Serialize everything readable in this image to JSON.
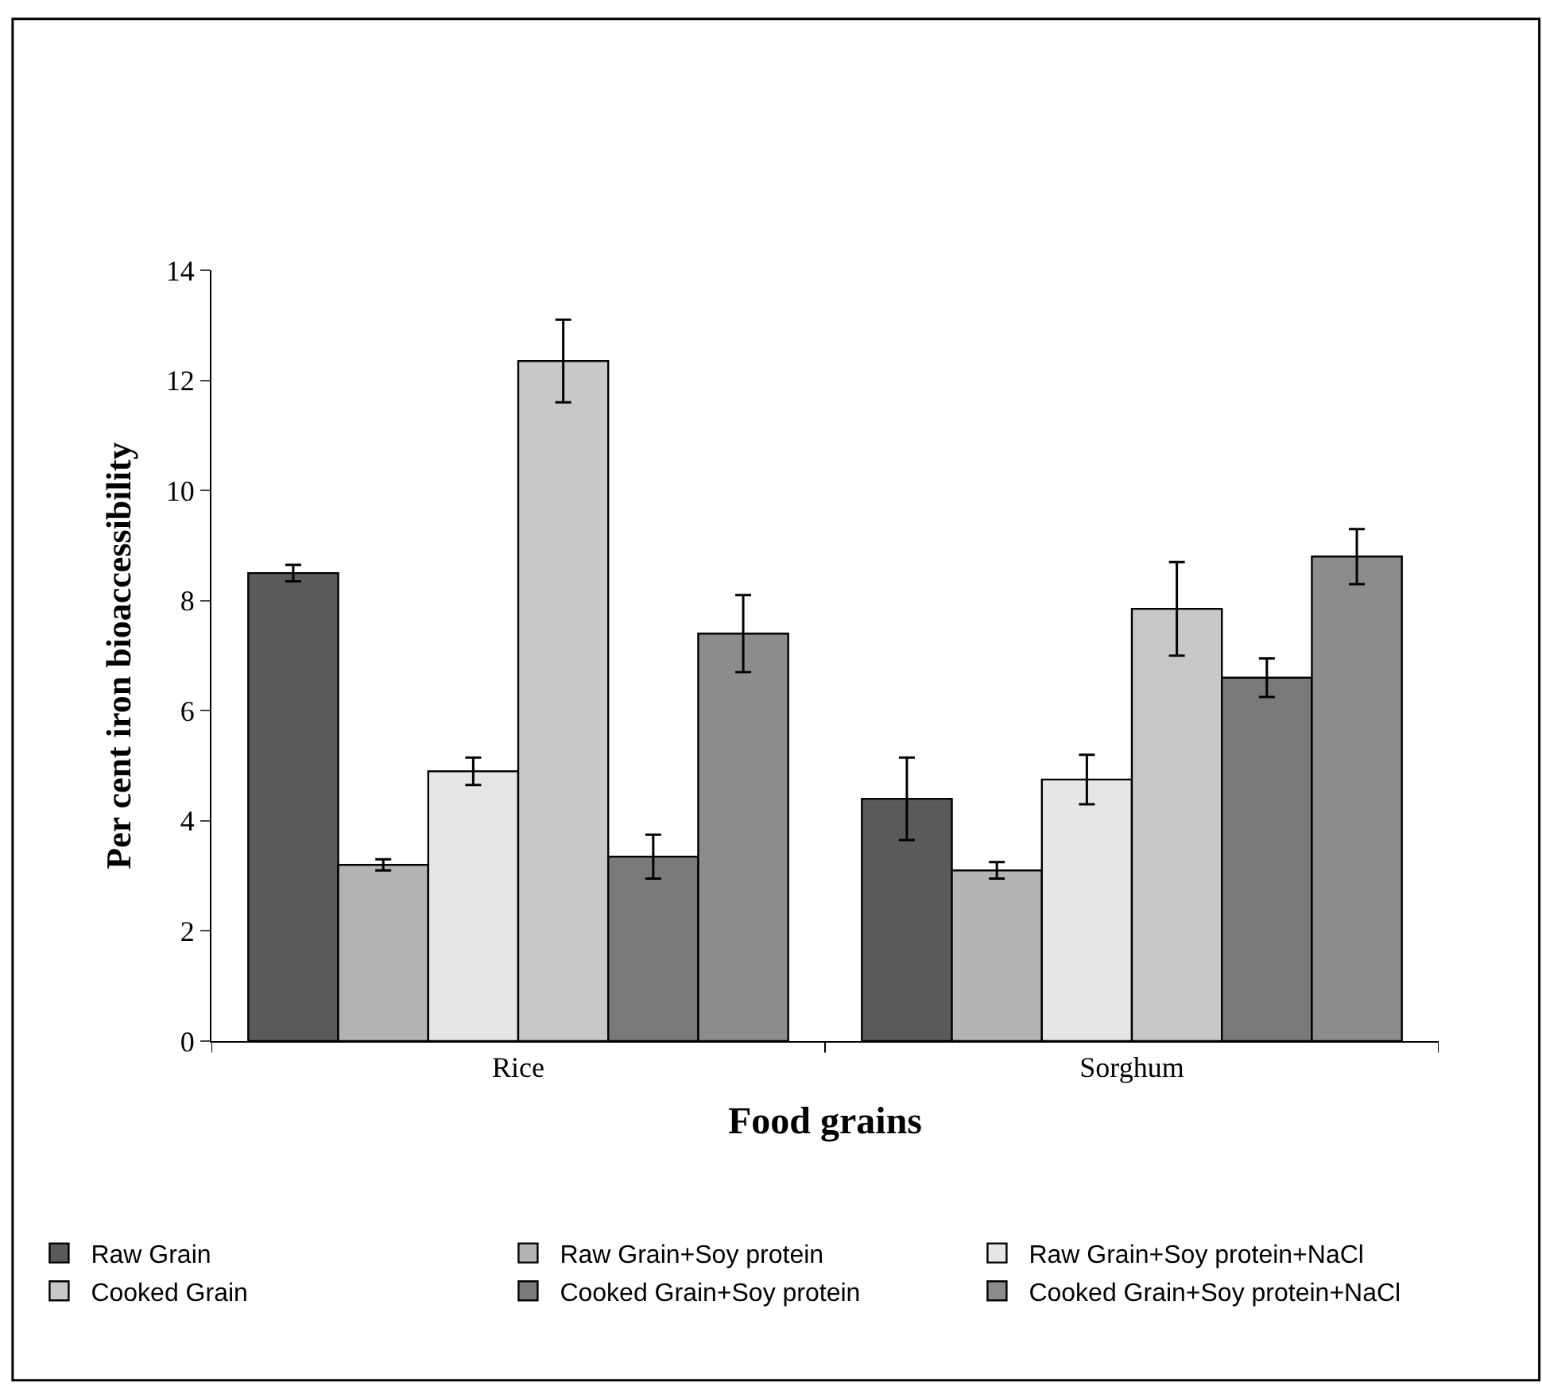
{
  "chart_data": {
    "type": "bar",
    "xlabel": "Food grains",
    "ylabel": "Per cent iron bioaccessibility",
    "categories": [
      "Rice",
      "Sorghum"
    ],
    "series": [
      {
        "name": "Raw Grain",
        "color": "#5a5a5a",
        "values": [
          8.5,
          4.4
        ],
        "errors": [
          0.15,
          0.75
        ]
      },
      {
        "name": "Raw Grain+Soy protein",
        "color": "#b4b4b4",
        "values": [
          3.2,
          3.1
        ],
        "errors": [
          0.1,
          0.15
        ]
      },
      {
        "name": "Raw Grain+Soy protein+NaCl",
        "color": "#e6e6e6",
        "values": [
          4.9,
          4.75
        ],
        "errors": [
          0.25,
          0.45
        ]
      },
      {
        "name": "Cooked Grain",
        "color": "#c8c8c8",
        "values": [
          12.35,
          7.85
        ],
        "errors": [
          0.75,
          0.85
        ]
      },
      {
        "name": "Cooked Grain+Soy protein",
        "color": "#7a7a7a",
        "values": [
          3.35,
          6.6
        ],
        "errors": [
          0.4,
          0.35
        ]
      },
      {
        "name": "Cooked Grain+Soy protein+NaCl",
        "color": "#8c8c8c",
        "values": [
          7.4,
          8.8
        ],
        "errors": [
          0.7,
          0.5
        ]
      }
    ],
    "ylim": [
      0,
      14
    ],
    "yticks": [
      0,
      2,
      4,
      6,
      8,
      10,
      12,
      14
    ],
    "legend": "bottom"
  }
}
